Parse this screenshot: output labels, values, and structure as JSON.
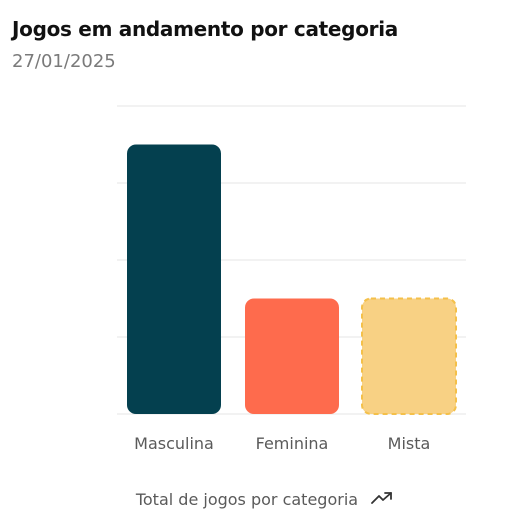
{
  "header": {
    "title": "Jogos em andamento por categoria",
    "date": "27/01/2025"
  },
  "footer": {
    "caption": "Total de jogos por categoria",
    "icon": "trending-up-icon"
  },
  "colors": {
    "masculina": "#04404f",
    "feminina": "#fe6b4d",
    "mista": "#f8d184",
    "mista_border": "#f4c04a",
    "grid": "#e6e6e6",
    "tick_text": "#5a5a5a"
  },
  "chart_data": {
    "type": "bar",
    "categories": [
      "Masculina",
      "Feminina",
      "Mista"
    ],
    "values": [
      3.5,
      1.5,
      1.5
    ],
    "ylim": [
      0,
      4
    ],
    "grid": true,
    "title": "",
    "xlabel": "",
    "ylabel": ""
  }
}
